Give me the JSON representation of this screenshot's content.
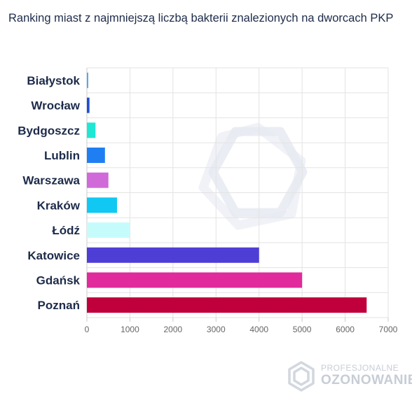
{
  "title": "Ranking miast z najmniejszą liczbą bakterii znalezionych na dworcach PKP",
  "brand": {
    "line1": "PROFESJONALNE",
    "line2": "OZONOWANIE"
  },
  "chart_data": {
    "type": "bar",
    "orientation": "horizontal",
    "title": "Ranking miast z najmniejszą liczbą bakterii znalezionych na dworcach PKP",
    "xlabel": "",
    "ylabel": "",
    "categories": [
      "Białystok",
      "Wrocław",
      "Bydgoszcz",
      "Lublin",
      "Warszawa",
      "Kraków",
      "Łódź",
      "Katowice",
      "Gdańsk",
      "Poznań"
    ],
    "values": [
      10,
      60,
      200,
      420,
      500,
      700,
      1000,
      4000,
      5000,
      6500
    ],
    "colors": [
      "#5aa9e6",
      "#1f4fd1",
      "#1ee8d4",
      "#1f7ef2",
      "#d06ad8",
      "#11c8f2",
      "#c6fbfb",
      "#4e3ed6",
      "#e12a9b",
      "#c0003c"
    ],
    "xlim": [
      0,
      7000
    ],
    "xticks": [
      "0",
      "1000",
      "2000",
      "3000",
      "4000",
      "5000",
      "6000",
      "7000"
    ],
    "grid": true,
    "legend": "none"
  }
}
